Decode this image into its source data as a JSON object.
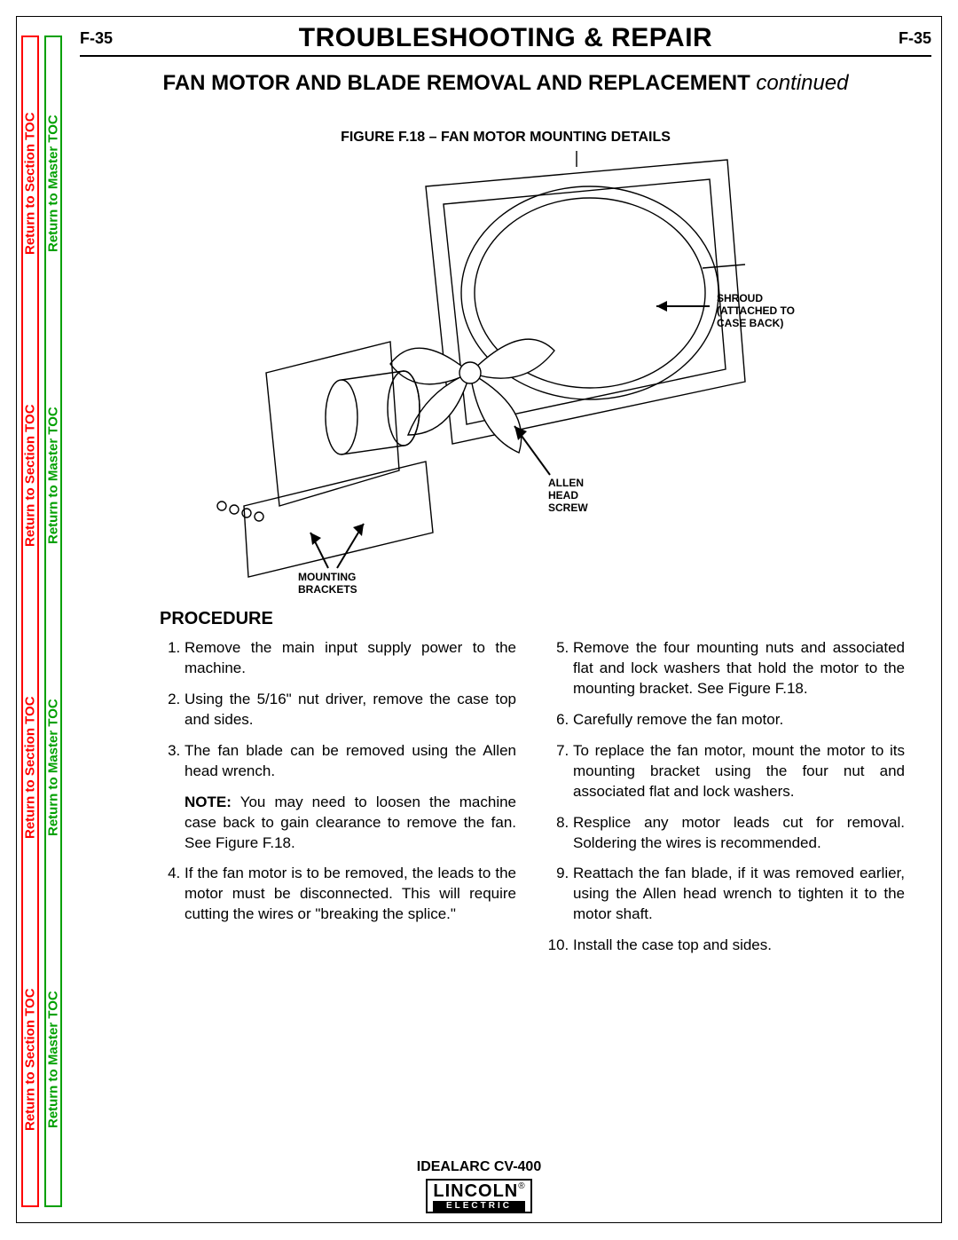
{
  "page_number": "F-35",
  "chapter_title": "TROUBLESHOOTING & REPAIR",
  "section_title": "FAN MOTOR AND BLADE REMOVAL AND REPLACEMENT",
  "section_cont": "continued",
  "toc": {
    "section": "Return to Section TOC",
    "master": "Return to Master TOC"
  },
  "figure": {
    "caption": "FIGURE F.18 – FAN MOTOR MOUNTING DETAILS",
    "callouts": {
      "shroud": "SHROUD\n(ATTACHED TO\nCASE BACK)",
      "allen": "ALLEN\nHEAD\nSCREW",
      "brackets": "MOUNTING\nBRACKETS"
    }
  },
  "procedure": {
    "heading": "PROCEDURE",
    "left": {
      "s1": "Remove the main input supply power to the machine.",
      "s2": "Using the 5/16\" nut driver, remove the case top and sides.",
      "s3": "The fan blade can be removed using the Allen head wrench.",
      "note_label": "NOTE:",
      "note": "You may need to loosen the machine case back to gain clearance to remove the fan. See Figure F.18.",
      "s4": "If the fan motor is to be removed, the leads to the motor must be disconnected. This will require cutting the wires or \"breaking the splice.\""
    },
    "right": {
      "s5": "Remove the four mounting nuts and associated flat and lock washers that hold the motor to the mounting bracket. See Figure F.18.",
      "s6": "Carefully remove the fan motor.",
      "s7": "To replace the fan motor, mount the motor to its mounting bracket using the four nut and associated flat and lock washers.",
      "s8": "Resplice any motor leads cut for removal. Soldering the wires is recommended.",
      "s9": "Reattach the fan blade, if it was removed earlier, using the Allen head wrench to tighten it to the motor shaft.",
      "s10": "Install the case top and sides."
    }
  },
  "footer": {
    "model": "IDEALARC CV-400",
    "brand": "LINCOLN",
    "sub": "ELECTRIC"
  },
  "colors": {
    "section_toc": "#ff0000",
    "master_toc": "#00a000",
    "text": "#000000"
  }
}
